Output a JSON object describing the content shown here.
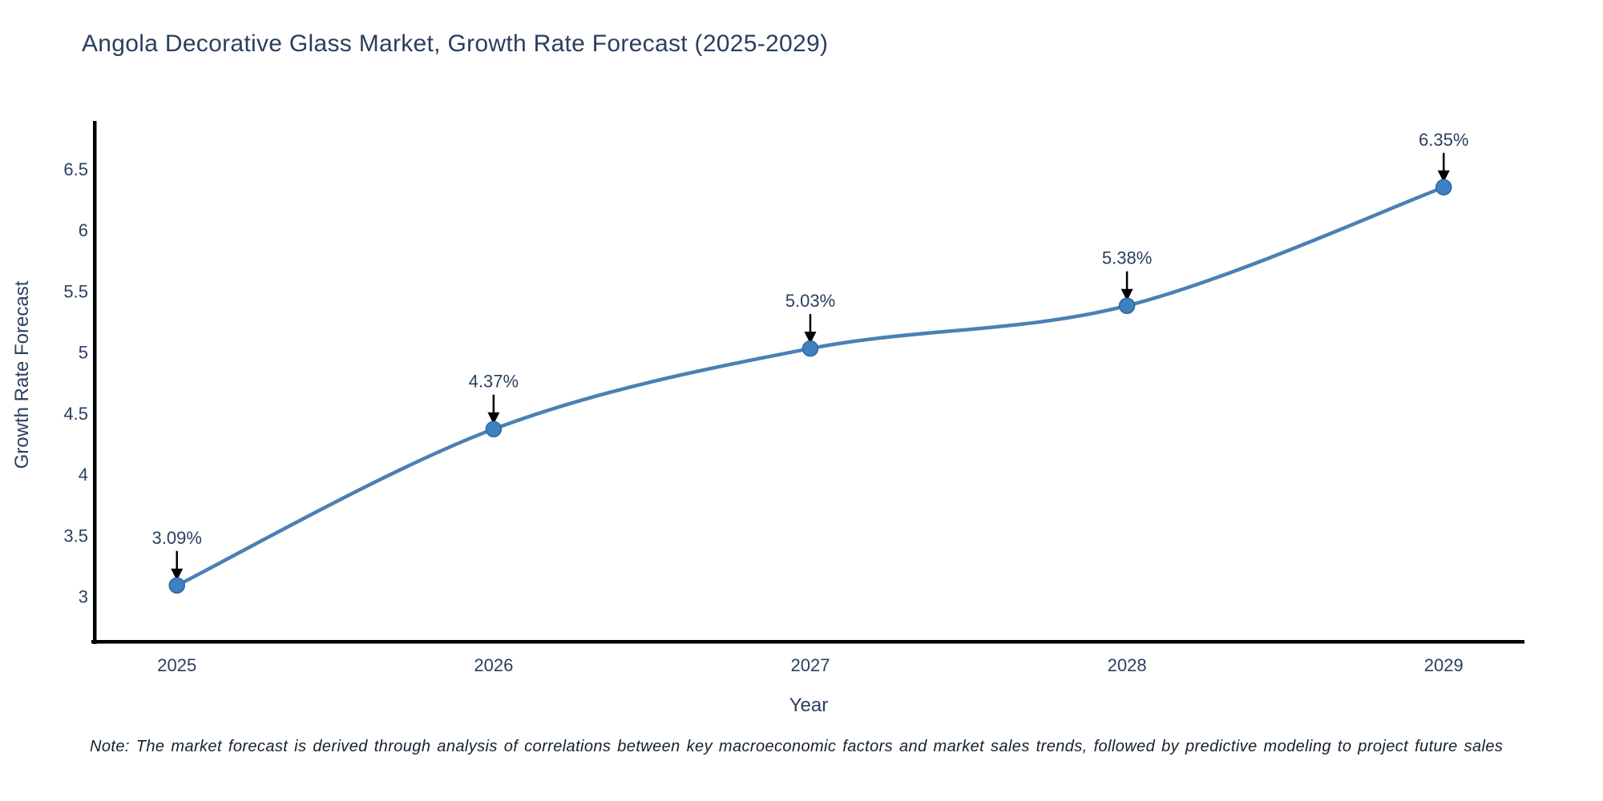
{
  "title": "Angola Decorative Glass Market, Growth Rate Forecast (2025-2029)",
  "note": "Note: The market forecast is derived through analysis of correlations between key macroeconomic factors and market sales trends, followed by predictive modeling to project future sales",
  "chart_data": {
    "type": "line",
    "title": "Angola Decorative Glass Market, Growth Rate Forecast (2025-2029)",
    "xlabel": "Year",
    "ylabel": "Growth Rate Forecast",
    "x": [
      2025,
      2026,
      2027,
      2028,
      2029
    ],
    "y": [
      3.09,
      4.37,
      5.03,
      5.38,
      6.35
    ],
    "point_labels": [
      "3.09%",
      "4.37%",
      "5.03%",
      "5.38%",
      "6.35%"
    ],
    "xtick_labels": [
      "2025",
      "2026",
      "2027",
      "2028",
      "2029"
    ],
    "yticks": [
      3,
      3.5,
      4,
      4.5,
      5,
      5.5,
      6,
      6.5
    ],
    "ytick_labels": [
      "3",
      "3.5",
      "4",
      "4.5",
      "5",
      "5.5",
      "6",
      "6.5"
    ],
    "xlim": [
      2024.74,
      2029.25
    ],
    "ylim": [
      2.63,
      6.88
    ],
    "grid": false,
    "legend": "none",
    "line_smoothing": "spline",
    "colors": {
      "line": "#4a80b4",
      "marker_fill": "#3e81c2",
      "marker_edge": "#2e689c",
      "axis": "#000000",
      "tick_text": "#2a3f5f",
      "annotation_text": "#2a3f5f",
      "annotation_arrow": "#000000",
      "title_text": "#2a3f5f"
    }
  }
}
